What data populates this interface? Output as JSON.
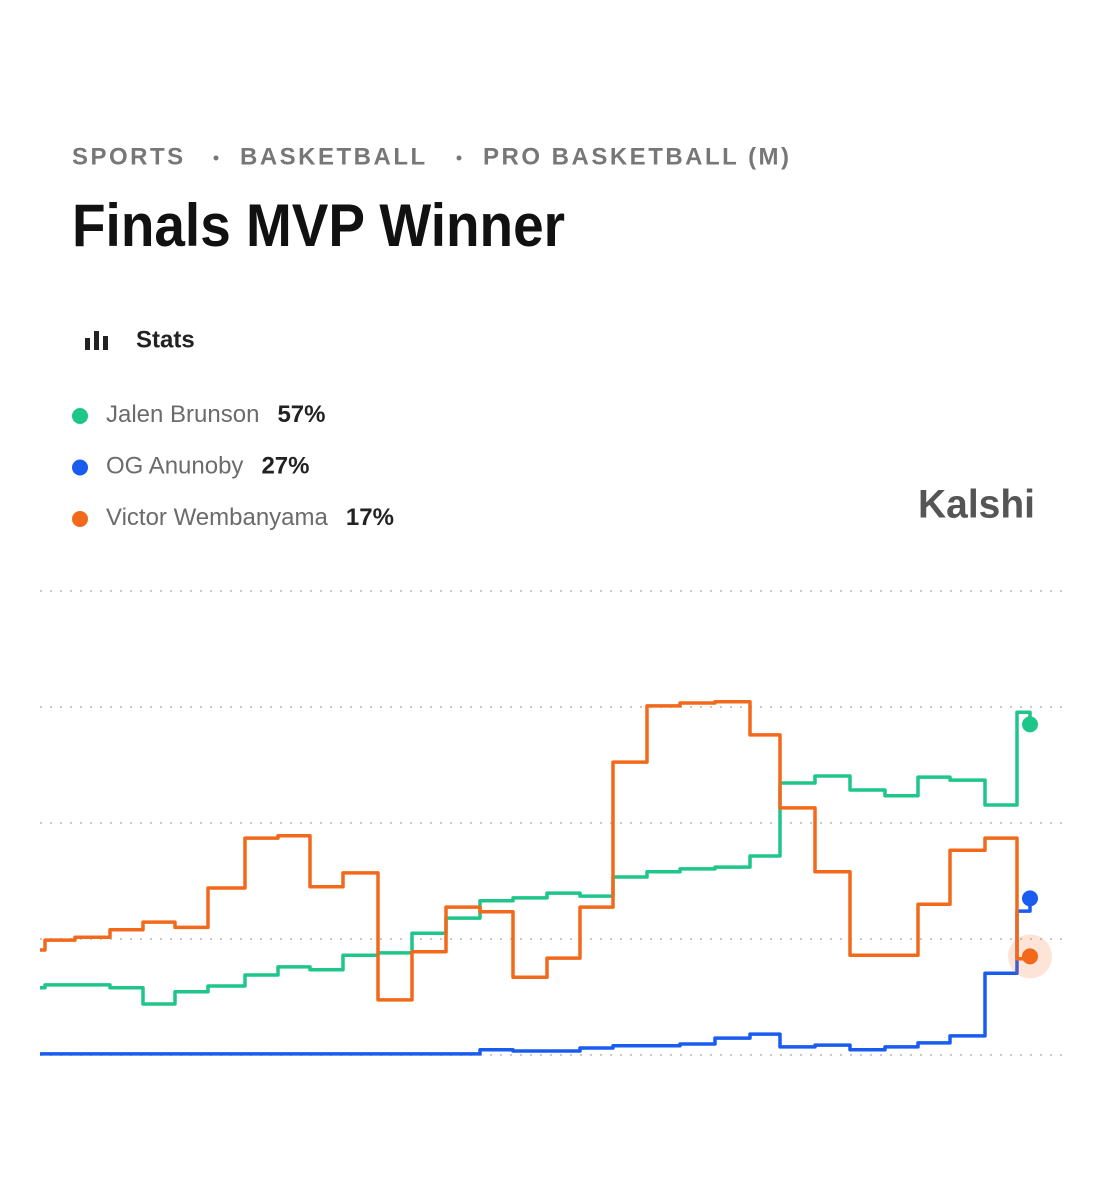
{
  "chart_data": {
    "type": "step",
    "breadcrumb": [
      "SPORTS",
      "BASKETBALL",
      "PRO BASKETBALL (M)"
    ],
    "title": "Finals MVP Winner",
    "view_label": "Stats",
    "brand": "Kalshi",
    "x": [
      0,
      5,
      35,
      70,
      103,
      135,
      168,
      205,
      238,
      270,
      303,
      338,
      372,
      406,
      440,
      473,
      507,
      540,
      573,
      607,
      640,
      675,
      710,
      740,
      775,
      810,
      845,
      878,
      910,
      945,
      977,
      990
    ],
    "xlim": [
      0,
      990
    ],
    "ylim": [
      0,
      80
    ],
    "yticks": [
      0,
      20,
      40,
      60,
      80
    ],
    "grid": true,
    "series": [
      {
        "name": "Jalen Brunson",
        "color": "#1fc68a",
        "values": [
          11.6,
          12.1,
          12.1,
          11.6,
          8.8,
          10.9,
          11.9,
          13.8,
          15.2,
          14.7,
          17.2,
          17.6,
          21,
          23.6,
          26.6,
          27.1,
          27.9,
          27.4,
          30.7,
          31.6,
          32.1,
          32.4,
          34.3,
          46.9,
          48.1,
          45.7,
          44.7,
          47.9,
          47.4,
          43.1,
          59.1,
          57
        ],
        "value_labels": [
          null,
          null,
          null,
          null,
          null,
          null,
          null,
          null,
          null,
          null,
          null,
          null,
          null,
          null,
          null,
          null,
          null,
          null,
          null,
          null,
          null,
          null,
          null,
          null,
          null,
          null,
          null,
          null,
          null,
          null,
          null,
          "57%"
        ]
      },
      {
        "name": "OG Anunoby",
        "color": "#1a5cf0",
        "values": [
          0.2,
          0.2,
          0.2,
          0.2,
          0.2,
          0.2,
          0.2,
          0.2,
          0.2,
          0.2,
          0.2,
          0.2,
          0.2,
          0.2,
          0.9,
          0.7,
          0.7,
          1.2,
          1.6,
          1.6,
          1.9,
          2.9,
          3.6,
          1.4,
          1.7,
          0.9,
          1.4,
          2.1,
          3.3,
          14.1,
          24.8,
          27
        ],
        "value_labels": [
          null,
          null,
          null,
          null,
          null,
          null,
          null,
          null,
          null,
          null,
          null,
          null,
          null,
          null,
          null,
          null,
          null,
          null,
          null,
          null,
          null,
          null,
          null,
          null,
          null,
          null,
          null,
          null,
          null,
          null,
          null,
          "27%"
        ]
      },
      {
        "name": "Victor Wembanyama",
        "color": "#f2691b",
        "values": [
          18.1,
          19.8,
          20.3,
          21.6,
          22.9,
          22,
          28.8,
          37.4,
          37.8,
          29,
          31.4,
          9.5,
          17.8,
          25.5,
          24.7,
          13.4,
          16.7,
          25.5,
          50.5,
          60.2,
          60.7,
          60.9,
          55.2,
          42.6,
          31.6,
          17.2,
          17.2,
          26,
          35.3,
          37.4,
          16.6,
          17
        ],
        "value_labels": [
          null,
          null,
          null,
          null,
          null,
          null,
          null,
          null,
          null,
          null,
          null,
          null,
          null,
          null,
          null,
          null,
          null,
          null,
          null,
          null,
          null,
          null,
          null,
          null,
          null,
          null,
          null,
          null,
          null,
          null,
          null,
          "17%"
        ]
      }
    ]
  }
}
